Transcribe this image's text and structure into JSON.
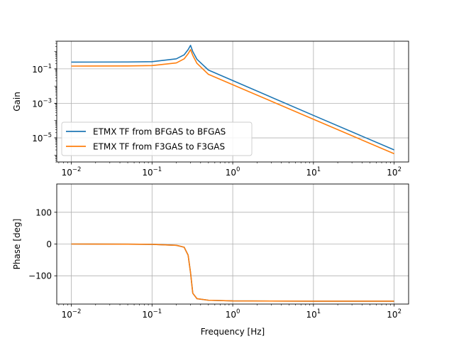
{
  "chart_data": [
    {
      "type": "line",
      "panel": "magnitude",
      "xscale": "log",
      "yscale": "log",
      "xlim": [
        0.0066,
        151
      ],
      "ylim": [
        4e-07,
        4
      ],
      "ylabel": "Gain",
      "xlabel": "",
      "grid": true,
      "legend_position": "lower-left",
      "x_ticks": [
        0.01,
        0.1,
        1,
        10,
        100
      ],
      "x_tick_labels": [
        [
          "10",
          "−2"
        ],
        [
          "10",
          "−1"
        ],
        [
          "10",
          "0"
        ],
        [
          "10",
          "1"
        ],
        [
          "10",
          "2"
        ]
      ],
      "y_ticks": [
        1e-05,
        0.001,
        0.1
      ],
      "y_tick_labels": [
        [
          "10",
          "−5"
        ],
        [
          "10",
          "−3"
        ],
        [
          "10",
          "−1"
        ]
      ],
      "series": [
        {
          "name": "ETMX TF from BFGAS to BFGAS",
          "color": "#1f77b4",
          "points": [
            [
              0.01,
              0.245
            ],
            [
              0.05,
              0.25
            ],
            [
              0.1,
              0.26
            ],
            [
              0.2,
              0.38
            ],
            [
              0.25,
              0.65
            ],
            [
              0.28,
              1.3
            ],
            [
              0.3,
              2.3
            ],
            [
              0.32,
              1.0
            ],
            [
              0.36,
              0.36
            ],
            [
              0.5,
              0.085
            ],
            [
              1,
              0.021
            ],
            [
              10,
              0.0002
            ],
            [
              100,
              2e-06
            ]
          ]
        },
        {
          "name": "ETMX TF from F3GAS to F3GAS",
          "color": "#ff7f0e",
          "points": [
            [
              0.01,
              0.145
            ],
            [
              0.05,
              0.148
            ],
            [
              0.1,
              0.155
            ],
            [
              0.2,
              0.22
            ],
            [
              0.25,
              0.38
            ],
            [
              0.28,
              0.75
            ],
            [
              0.3,
              1.3
            ],
            [
              0.32,
              0.6
            ],
            [
              0.36,
              0.21
            ],
            [
              0.5,
              0.048
            ],
            [
              1,
              0.012
            ],
            [
              10,
              0.00012
            ],
            [
              100,
              1.2e-06
            ]
          ]
        }
      ]
    },
    {
      "type": "line",
      "panel": "phase",
      "xscale": "log",
      "yscale": "linear",
      "xlim": [
        0.0066,
        151
      ],
      "ylim": [
        -189,
        189
      ],
      "ylabel": "Phase [deg]",
      "xlabel": "Frequency [Hz]",
      "grid": true,
      "x_ticks": [
        0.01,
        0.1,
        1,
        10,
        100
      ],
      "x_tick_labels": [
        [
          "10",
          "−2"
        ],
        [
          "10",
          "−1"
        ],
        [
          "10",
          "0"
        ],
        [
          "10",
          "1"
        ],
        [
          "10",
          "2"
        ]
      ],
      "y_ticks": [
        100,
        0,
        -100
      ],
      "y_tick_labels": [
        "100",
        "0",
        "−100"
      ],
      "series": [
        {
          "name": "ETMX TF from BFGAS to BFGAS",
          "color": "#1f77b4",
          "points": [
            [
              0.01,
              0
            ],
            [
              0.05,
              -0.5
            ],
            [
              0.1,
              -1
            ],
            [
              0.2,
              -4
            ],
            [
              0.25,
              -10
            ],
            [
              0.28,
              -35
            ],
            [
              0.3,
              -90
            ],
            [
              0.32,
              -155
            ],
            [
              0.36,
              -172
            ],
            [
              0.5,
              -177
            ],
            [
              1,
              -179
            ],
            [
              10,
              -180
            ],
            [
              100,
              -180
            ]
          ]
        },
        {
          "name": "ETMX TF from F3GAS to F3GAS",
          "color": "#ff7f0e",
          "points": [
            [
              0.01,
              0
            ],
            [
              0.05,
              -0.5
            ],
            [
              0.1,
              -1
            ],
            [
              0.2,
              -4
            ],
            [
              0.25,
              -10
            ],
            [
              0.28,
              -35
            ],
            [
              0.3,
              -90
            ],
            [
              0.32,
              -155
            ],
            [
              0.36,
              -172
            ],
            [
              0.5,
              -177
            ],
            [
              1,
              -179
            ],
            [
              10,
              -180
            ],
            [
              100,
              -180
            ]
          ]
        }
      ]
    }
  ]
}
